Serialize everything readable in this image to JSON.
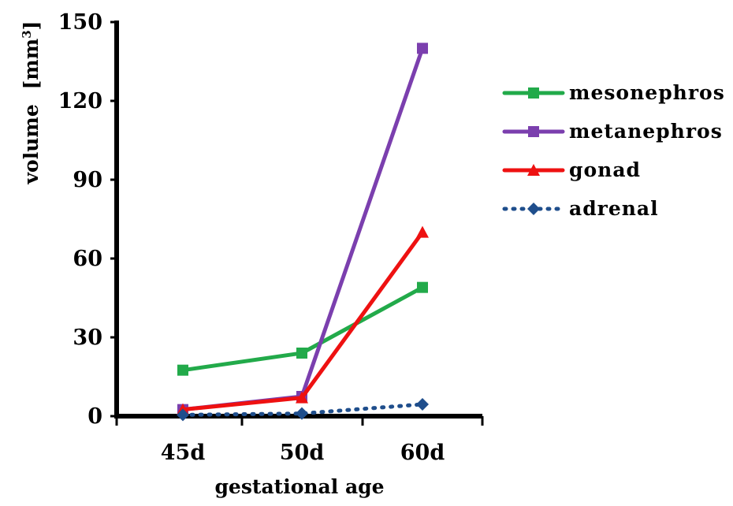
{
  "chart_data": {
    "type": "line",
    "categories": [
      "45d",
      "50d",
      "60d"
    ],
    "xlabel": "gestational age",
    "ylabel": {
      "text": "volume",
      "unit_open": "[mm",
      "unit_sup": "3",
      "unit_close": "]"
    },
    "ylim": [
      0,
      150
    ],
    "yticks": [
      "0",
      "30",
      "60",
      "90",
      "120",
      "150"
    ],
    "grid": false,
    "legend_position": "right",
    "series": [
      {
        "name": "mesonephros",
        "values": [
          17.5,
          24,
          49
        ],
        "color": "#22aa4a",
        "marker": "square",
        "line_style": "solid"
      },
      {
        "name": "metanephros",
        "values": [
          2.5,
          7.5,
          140
        ],
        "color": "#7b3fae",
        "marker": "square",
        "line_style": "solid"
      },
      {
        "name": "gonad",
        "values": [
          2.5,
          7,
          70
        ],
        "color": "#ee1111",
        "marker": "triangle",
        "line_style": "solid"
      },
      {
        "name": "adrenal",
        "values": [
          0.5,
          1,
          4.5
        ],
        "color": "#1f4e8c",
        "marker": "diamond",
        "line_style": "dotted"
      }
    ]
  }
}
